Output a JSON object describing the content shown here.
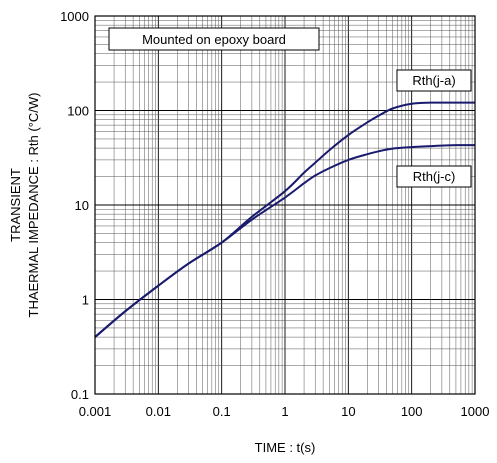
{
  "chart_data": {
    "type": "line",
    "scale": "log-log",
    "xlabel": "TIME : t(s)",
    "ylabel_line1": "TRANSIENT",
    "ylabel_line2": "THAERMAL IMPEDANCE : Rth (°C/W)",
    "annotation": "Mounted on epoxy board",
    "xlim": [
      0.001,
      1000
    ],
    "ylim": [
      0.1,
      1000
    ],
    "x_ticks": [
      "0.001",
      "0.01",
      "0.1",
      "1",
      "10",
      "100",
      "1000"
    ],
    "y_ticks": [
      "0.1",
      "1",
      "10",
      "100",
      "1000"
    ],
    "grid": true,
    "series": [
      {
        "name": "Rth(j-a)",
        "color": "#1a1a6e",
        "x": [
          0.001,
          0.003,
          0.01,
          0.03,
          0.1,
          0.3,
          1,
          2,
          3,
          5,
          10,
          20,
          30,
          50,
          100,
          200,
          500,
          1000
        ],
        "y": [
          0.4,
          0.75,
          1.4,
          2.4,
          4.0,
          7.5,
          14,
          22,
          28,
          38,
          55,
          75,
          88,
          105,
          118,
          121,
          121,
          121
        ]
      },
      {
        "name": "Rth(j-c)",
        "color": "#1a1a6e",
        "x": [
          0.001,
          0.003,
          0.01,
          0.03,
          0.1,
          0.3,
          1,
          2,
          3,
          5,
          10,
          20,
          30,
          50,
          100,
          200,
          500,
          1000
        ],
        "y": [
          0.4,
          0.75,
          1.4,
          2.4,
          4.0,
          7.0,
          12,
          17,
          20.5,
          24.5,
          30,
          34.5,
          37,
          39.5,
          41,
          42,
          43,
          43
        ]
      }
    ]
  }
}
